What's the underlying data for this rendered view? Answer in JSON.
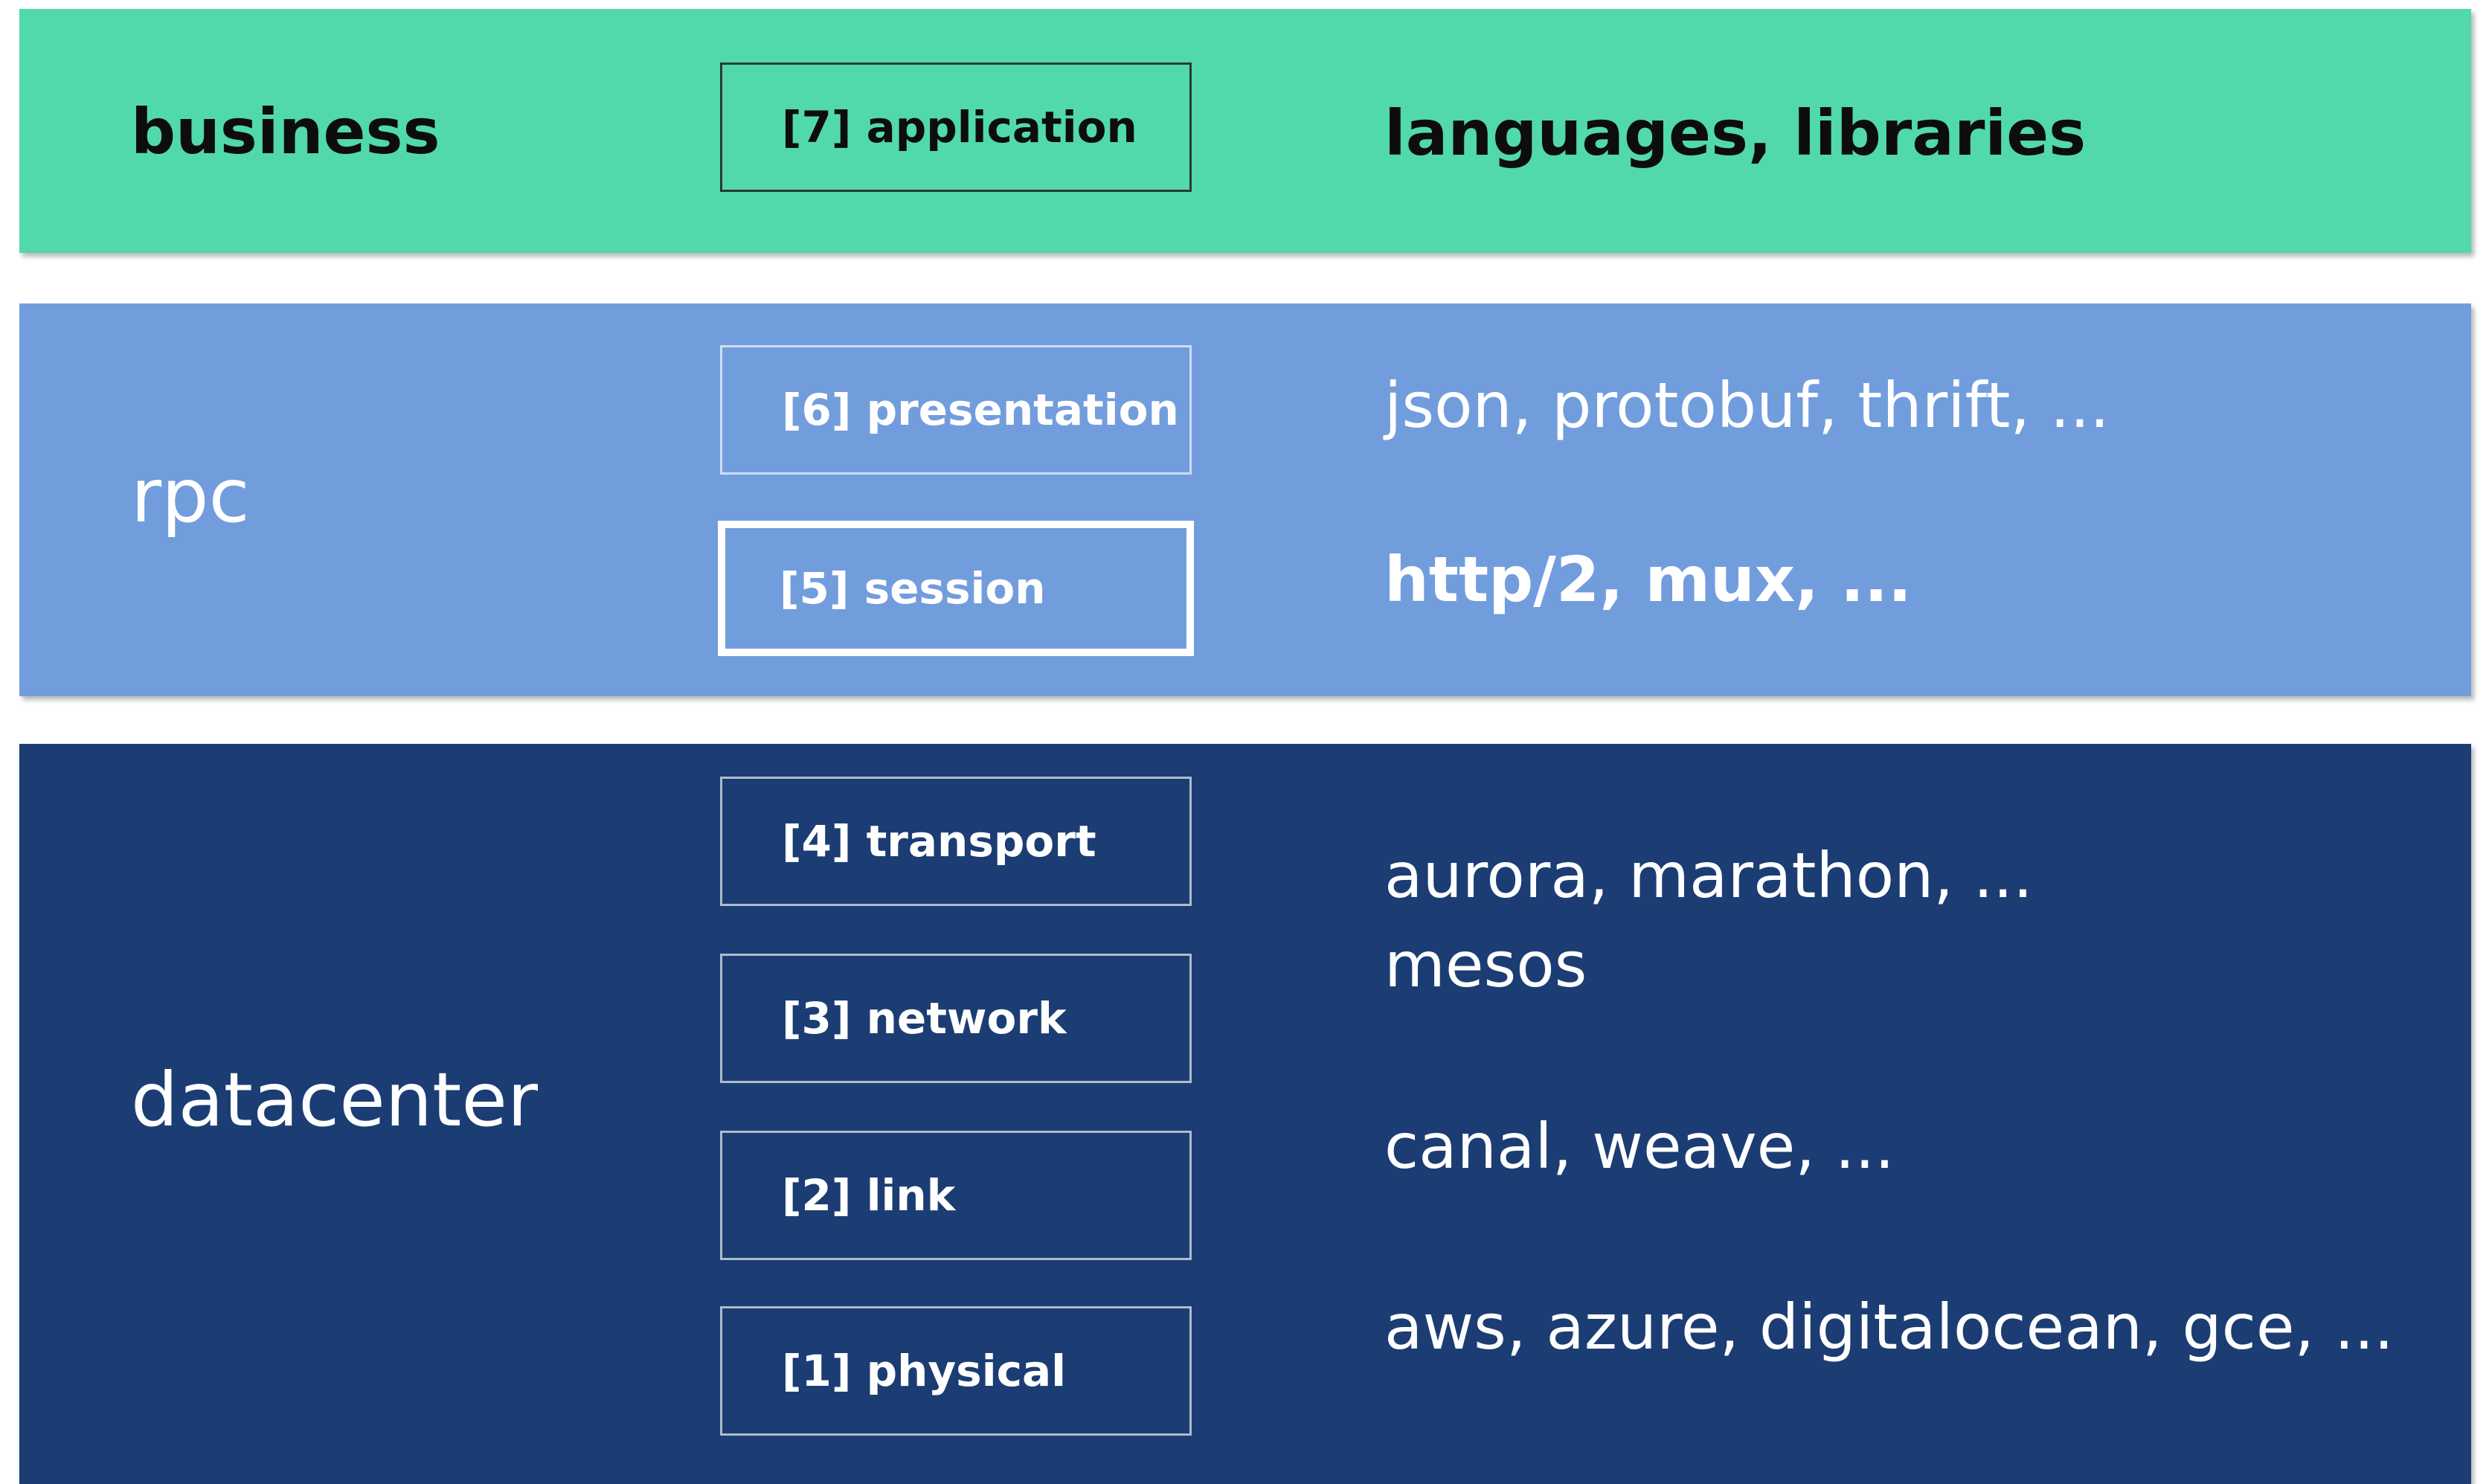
{
  "bands": {
    "business": {
      "label": "business",
      "color": "#52d8ad",
      "layers": [
        "[7] application"
      ],
      "technologies": [
        "languages, libraries"
      ]
    },
    "rpc": {
      "label": "rpc",
      "color": "#729ddd",
      "layers": [
        "[6] presentation",
        "[5] session"
      ],
      "technologies": [
        "json, protobuf, thrift, ...",
        "http/2, mux, ..."
      ]
    },
    "datacenter": {
      "label": "datacenter",
      "color": "#1b3d74",
      "layers": [
        "[4] transport",
        "[3] network",
        "[2] link",
        "[1] physical"
      ],
      "technologies": [
        "aurora, marathon, ...",
        "mesos",
        "canal, weave, ...",
        "aws, azure, digitalocean, gce, ..."
      ]
    }
  }
}
